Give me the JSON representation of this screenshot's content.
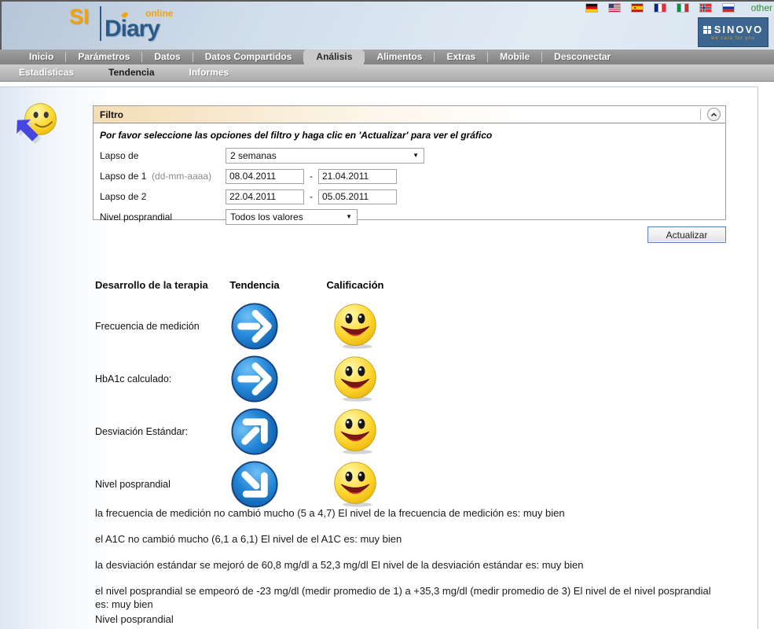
{
  "header": {
    "logo": {
      "si": "SI",
      "diary": "Diary",
      "online": "online"
    },
    "languages": [
      "germany",
      "usa",
      "spain",
      "france",
      "italy",
      "norway",
      "russia"
    ],
    "other_label": "other",
    "sinovo": {
      "name": "SINOVO",
      "tagline": "we care for you"
    }
  },
  "nav": {
    "tabs": [
      {
        "label": "Inicio",
        "active": false
      },
      {
        "label": "Parámetros",
        "active": false
      },
      {
        "label": "Datos",
        "active": false
      },
      {
        "label": "Datos Compartidos",
        "active": false
      },
      {
        "label": "Análisis",
        "active": true
      },
      {
        "label": "Alimentos",
        "active": false
      },
      {
        "label": "Extras",
        "active": false
      },
      {
        "label": "Mobile",
        "active": false
      },
      {
        "label": "Desconectar",
        "active": false
      }
    ],
    "subtabs": [
      {
        "label": "Estadísticas",
        "active": false
      },
      {
        "label": "Tendencia",
        "active": true
      },
      {
        "label": "Informes",
        "active": false
      }
    ]
  },
  "filter": {
    "title": "Filtro",
    "instruction": "Por favor seleccione las opciones del filtro y haga clic en 'Actualizar' para ver el gráfico",
    "lapso_de": {
      "label": "Lapso de",
      "value": "2 semanas"
    },
    "lapso1": {
      "label": "Lapso de 1",
      "hint": "(dd-mm-aaaa)",
      "from": "08.04.2011",
      "sep": "-",
      "to": "21.04.2011"
    },
    "lapso2": {
      "label": "Lapso de 2",
      "from": "22.04.2011",
      "sep": "-",
      "to": "05.05.2011"
    },
    "nivel": {
      "label": "Nivel posprandial",
      "value": "Todos los valores"
    },
    "update_button": "Actualizar"
  },
  "trend_table": {
    "headers": {
      "therapy": "Desarrollo de la terapia",
      "trend": "Tendencia",
      "rating": "Calificación"
    },
    "rows": [
      {
        "label": "Frecuencia de medición",
        "trend": "right",
        "rating": "smiley-good"
      },
      {
        "label": "HbA1c calculado:",
        "trend": "right",
        "rating": "smiley-good"
      },
      {
        "label": "Desviación Estándar:",
        "trend": "up-right",
        "rating": "smiley-good"
      },
      {
        "label": "Nivel posprandial",
        "trend": "down-right",
        "rating": "smiley-good"
      }
    ]
  },
  "results": [
    "la frecuencia de medición no cambió mucho (5 a 4,7) El nivel de la frecuencia de medición es: muy bien",
    "el A1C no cambió mucho (6,1 a 6,1) El nivel de el A1C es: muy bien",
    "la desviación estándar se mejoró de 60,8 mg/dl a 52,3 mg/dl El nivel de la desviación estándar es: muy bien",
    "el nivel posprandial se empeoró de -23 mg/dl (medir promedio de 1) a +35,3 mg/dl (medir promedio de 3) El nivel de el nivel posprandial es: muy bien",
    "Nivel posprandial"
  ],
  "colors": {
    "brand_orange": "#f2a30a",
    "brand_blue": "#2a5a8a",
    "nav_gray": "#8c8c8c",
    "filter_header_tan": "#f3ddb4",
    "arrow_blue": "#1e7fd0",
    "smiley_yellow": "#ffd62e",
    "sinovo_blue": "#3c6590",
    "other_link_green": "#2e8b2e"
  }
}
